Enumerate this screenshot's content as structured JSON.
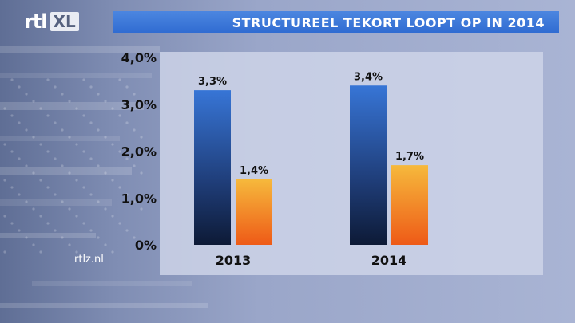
{
  "brand": {
    "rtl": "rtl",
    "xl": "XL"
  },
  "title": "STRUCTUREEL TEKORT LOOPT OP IN 2014",
  "footer": "rtlz.nl",
  "colors": {
    "title_bar": "#3a77d8",
    "series_a": "#2f62b8",
    "series_b": "#f08a1e"
  },
  "chart_data": {
    "type": "bar",
    "title": "STRUCTUREEL TEKORT LOOPT OP IN 2014",
    "xlabel": "",
    "ylabel": "",
    "categories": [
      "2013",
      "2014"
    ],
    "series": [
      {
        "values": [
          3.3,
          3.4
        ],
        "labels": [
          "3,3%",
          "3,4%"
        ]
      },
      {
        "values": [
          1.4,
          1.7
        ],
        "labels": [
          "1,4%",
          "1,7%"
        ]
      }
    ],
    "ylim": [
      0,
      4
    ],
    "yticks": [
      0,
      1,
      2,
      3,
      4
    ],
    "ytick_labels": [
      "0%",
      "1,0%",
      "2,0%",
      "3,0%",
      "4,0%"
    ],
    "grid": false,
    "legend": "none"
  }
}
